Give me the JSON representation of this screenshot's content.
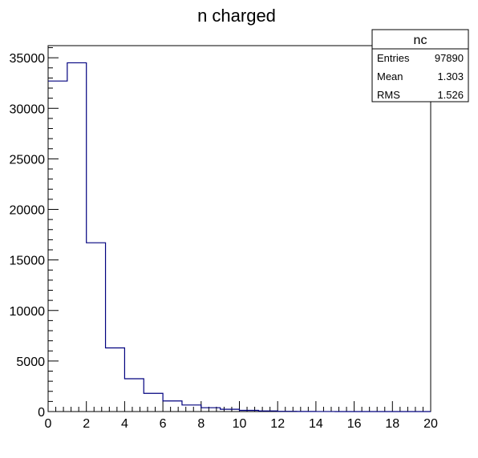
{
  "chart_data": {
    "type": "bar",
    "title": "n charged",
    "xlabel": "",
    "ylabel": "",
    "xlim": [
      0,
      20
    ],
    "ylim": [
      0,
      36200
    ],
    "bin_width": 1,
    "bins": [
      0,
      1,
      2,
      3,
      4,
      5,
      6,
      7,
      8,
      9,
      10,
      11,
      12,
      13,
      14,
      15,
      16,
      17,
      18,
      19
    ],
    "values": [
      32700,
      34500,
      16700,
      6300,
      3250,
      1800,
      1050,
      650,
      380,
      230,
      120,
      60,
      25,
      10,
      5,
      2,
      0,
      0,
      0,
      0
    ],
    "x_ticks": [
      "0",
      "2",
      "4",
      "6",
      "8",
      "10",
      "12",
      "14",
      "16",
      "18",
      "20"
    ],
    "y_ticks": [
      "0",
      "5000",
      "10000",
      "15000",
      "20000",
      "25000",
      "30000",
      "35000"
    ],
    "line_color": "#00007f",
    "grid": false
  },
  "stats_box": {
    "title": "nc",
    "rows": [
      {
        "label": "Entries",
        "value": "97890"
      },
      {
        "label": "Mean",
        "value": "1.303"
      },
      {
        "label": "RMS",
        "value": "1.526"
      }
    ]
  }
}
